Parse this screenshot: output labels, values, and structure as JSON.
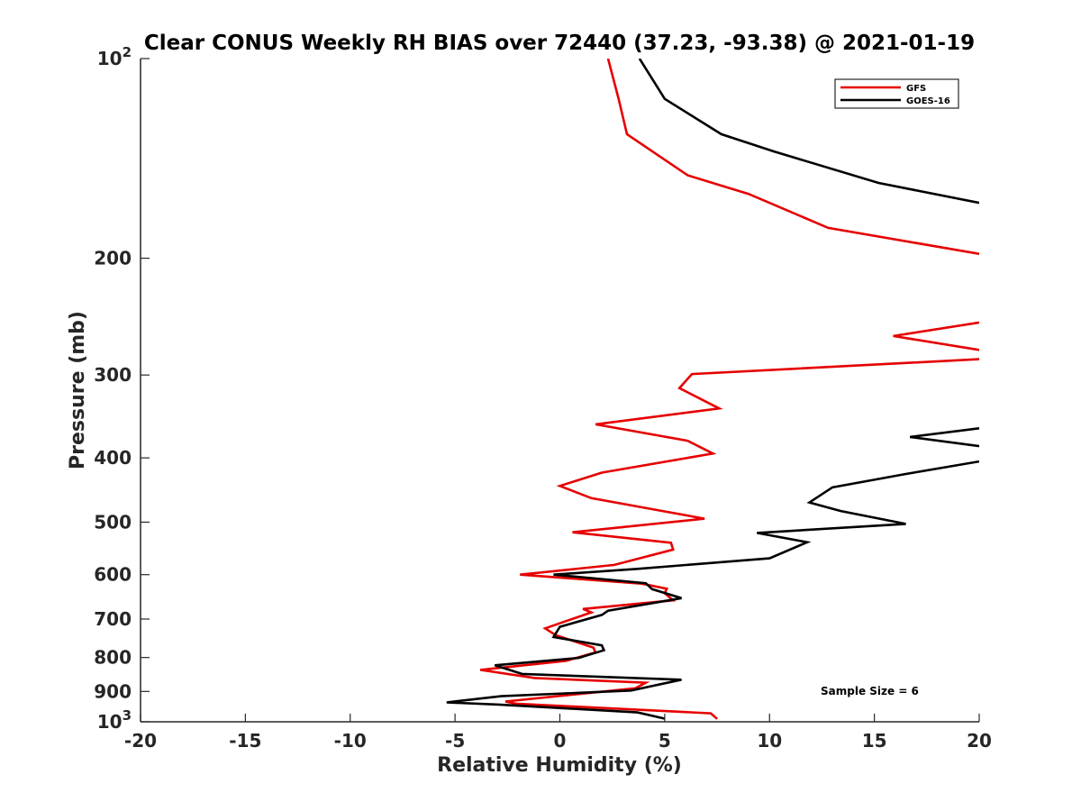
{
  "chart_data": {
    "type": "line",
    "title": "Clear CONUS Weekly RH BIAS over 72440 (37.23, -93.38) @ 2021-01-19",
    "xlabel": "Relative Humidity (%)",
    "ylabel": "Pressure (mb)",
    "xlim": [
      -20,
      20
    ],
    "ylim": [
      100,
      1000
    ],
    "y_scale": "log",
    "y_reversed": true,
    "x_ticks": [
      "-20",
      "-15",
      "-10",
      "-5",
      "0",
      "5",
      "10",
      "15",
      "20"
    ],
    "y_ticks": [
      {
        "value": 100,
        "base": "10",
        "exp": "2"
      },
      {
        "value": 200,
        "base": "200",
        "exp": ""
      },
      {
        "value": 300,
        "base": "300",
        "exp": ""
      },
      {
        "value": 400,
        "base": "400",
        "exp": ""
      },
      {
        "value": 500,
        "base": "500",
        "exp": ""
      },
      {
        "value": 600,
        "base": "600",
        "exp": ""
      },
      {
        "value": 700,
        "base": "700",
        "exp": ""
      },
      {
        "value": 800,
        "base": "800",
        "exp": ""
      },
      {
        "value": 900,
        "base": "900",
        "exp": ""
      },
      {
        "value": 1000,
        "base": "10",
        "exp": "3"
      }
    ],
    "grid": false,
    "legend_position": "top-right",
    "annotation": "Sample Size = 6",
    "series": [
      {
        "name": "GFS",
        "color": "#e60000",
        "segments": [
          [
            [
              2.3,
              100
            ],
            [
              2.8,
              115
            ],
            [
              3.2,
              130
            ],
            [
              6.1,
              150
            ],
            [
              9,
              160
            ],
            [
              12.8,
              180
            ],
            [
              20,
              197
            ]
          ],
          [
            [
              20,
              250
            ],
            [
              15.9,
              262
            ],
            [
              20,
              275
            ]
          ],
          [
            [
              20,
              284
            ],
            [
              6.3,
              299
            ],
            [
              5.7,
              314
            ],
            [
              7.6,
              337
            ],
            [
              1.7,
              356
            ],
            [
              6.1,
              377
            ],
            [
              7.3,
              394
            ],
            [
              2,
              421
            ],
            [
              0,
              441
            ],
            [
              1.5,
              460
            ],
            [
              4.9,
              481
            ],
            [
              6.9,
              494
            ],
            [
              0.6,
              518
            ],
            [
              5.3,
              537
            ],
            [
              5.4,
              550
            ],
            [
              2.6,
              580
            ],
            [
              -1.9,
              600
            ],
            [
              3.9,
              619
            ],
            [
              5.1,
              630
            ],
            [
              5,
              640
            ],
            [
              5.4,
              656
            ],
            [
              1.1,
              676
            ],
            [
              1.5,
              684
            ],
            [
              -0.7,
              723
            ],
            [
              -0.2,
              740
            ],
            [
              1.6,
              773
            ],
            [
              1.7,
              786
            ],
            [
              0.3,
              809
            ],
            [
              -3.8,
              835
            ],
            [
              -1.2,
              859
            ],
            [
              4.1,
              873
            ],
            [
              3.6,
              890
            ],
            [
              -2.6,
              932
            ],
            [
              -2.1,
              939
            ],
            [
              7.2,
              971
            ],
            [
              7.5,
              990
            ]
          ]
        ]
      },
      {
        "name": "GOES-16",
        "color": "#000000",
        "segments": [
          [
            [
              3.8,
              100
            ],
            [
              5,
              115
            ],
            [
              7.7,
              130
            ],
            [
              10.2,
              138
            ],
            [
              15.2,
              154
            ],
            [
              20,
              165
            ]
          ],
          [
            [
              20,
              361
            ],
            [
              16.7,
              372
            ],
            [
              20,
              384
            ]
          ],
          [
            [
              20,
              405
            ],
            [
              16.5,
              423
            ],
            [
              13,
              443
            ],
            [
              11.9,
              467
            ],
            [
              13.4,
              481
            ],
            [
              16.5,
              503
            ],
            [
              9.4,
              519
            ],
            [
              11.8,
              536
            ],
            [
              10,
              567
            ],
            [
              3.7,
              588
            ],
            [
              -0.3,
              600
            ],
            [
              4.1,
              618
            ],
            [
              4.4,
              631
            ],
            [
              5.8,
              651
            ],
            [
              2.3,
              680
            ],
            [
              2,
              690
            ],
            [
              0,
              719
            ],
            [
              -0.3,
              745
            ],
            [
              2,
              767
            ],
            [
              2.1,
              780
            ],
            [
              0.9,
              801
            ],
            [
              -3.1,
              822
            ],
            [
              -1.8,
              847
            ],
            [
              5.8,
              864
            ],
            [
              3.4,
              897
            ],
            [
              -2.8,
              915
            ],
            [
              -5.4,
              935
            ],
            [
              -2.9,
              942
            ],
            [
              3.7,
              968
            ],
            [
              5,
              989
            ]
          ]
        ]
      }
    ]
  }
}
